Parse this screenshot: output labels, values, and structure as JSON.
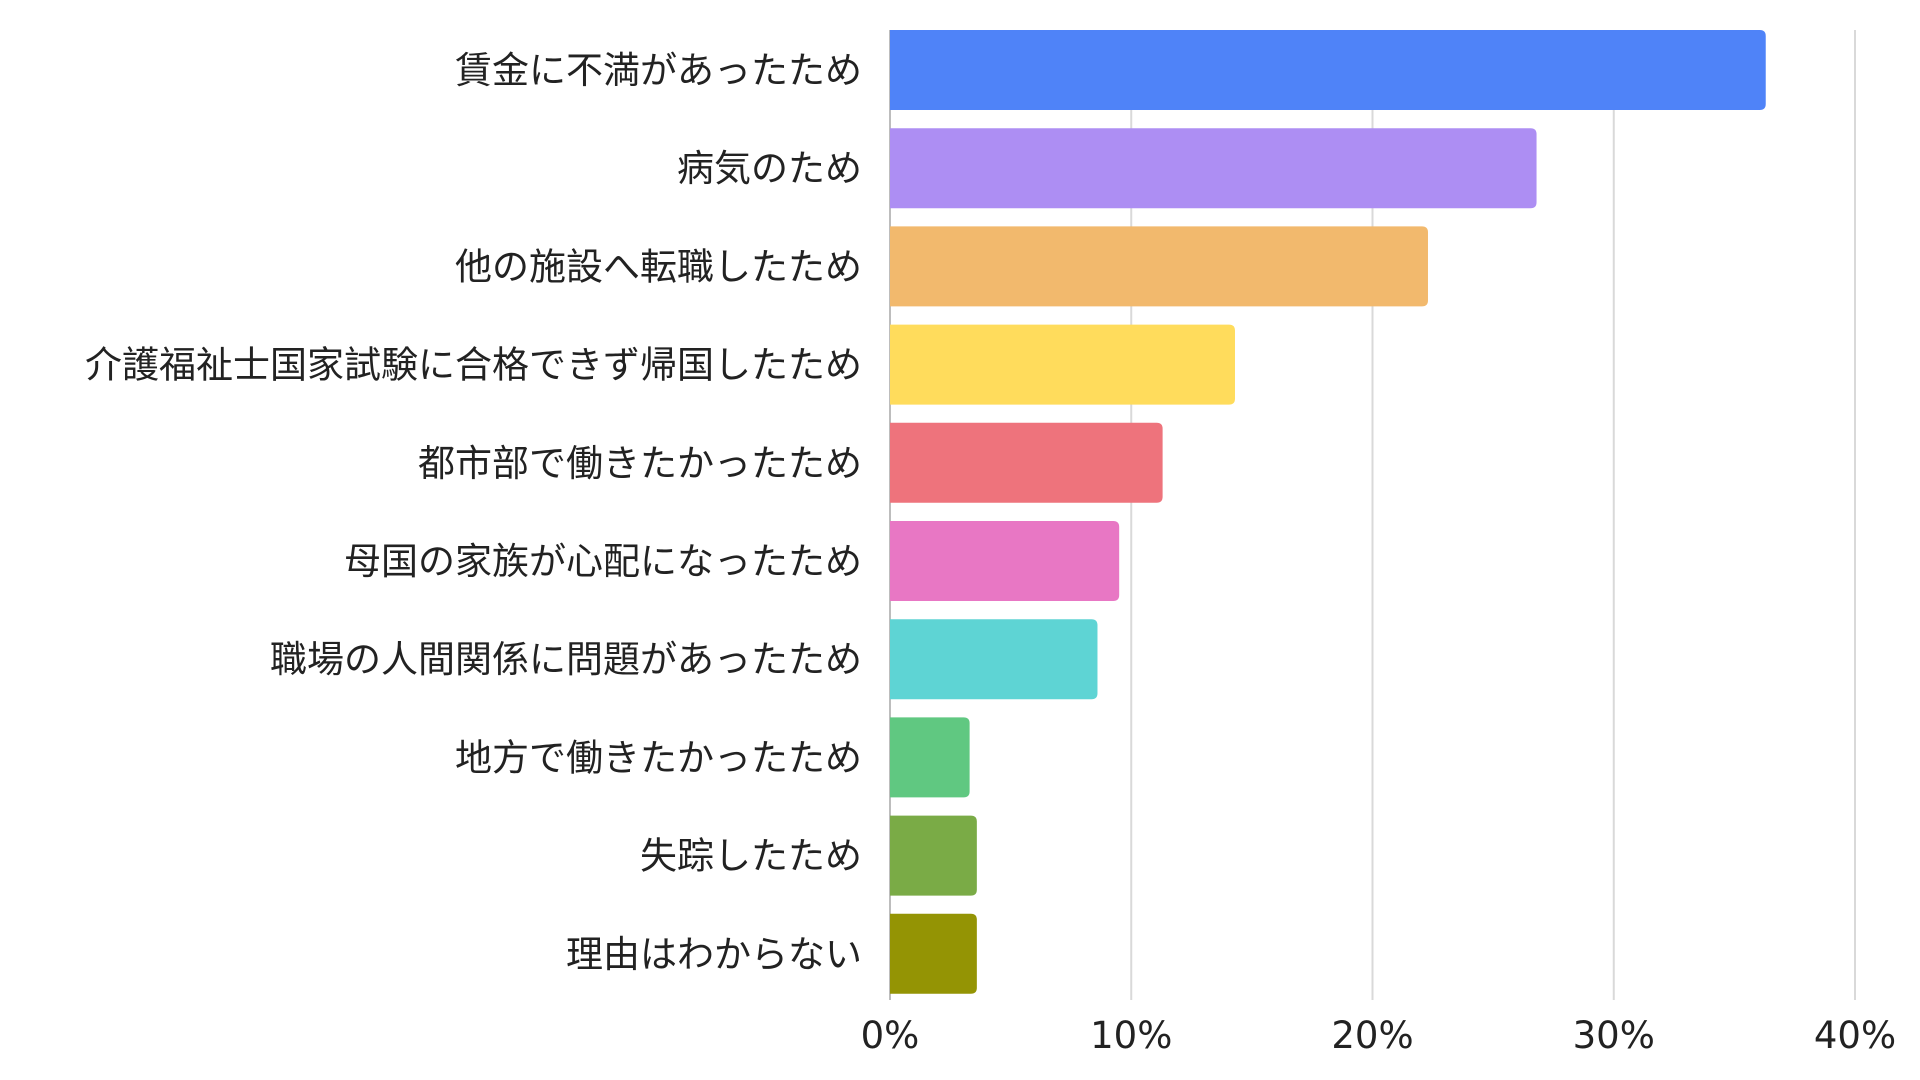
{
  "chart_data": {
    "type": "bar",
    "orientation": "horizontal",
    "categories": [
      "賃金に不満があったため",
      "病気のため",
      "他の施設へ転職したため",
      "介護福祉士国家試験に合格できず帰国したため",
      "都市部で働きたかったため",
      "母国の家族が心配になったため",
      "職場の人間関係に問題があったため",
      "地方で働きたかったため",
      "失踪したため",
      "理由はわからない"
    ],
    "values": [
      36.3,
      26.8,
      22.3,
      14.3,
      11.3,
      9.5,
      8.6,
      3.3,
      3.6,
      3.6
    ],
    "colors": [
      "#4f83f8",
      "#ad8ef3",
      "#f2b96d",
      "#ffdc5c",
      "#ee737c",
      "#e877c4",
      "#5ed4d4",
      "#60c881",
      "#7aab46",
      "#949404"
    ],
    "xlim": [
      0,
      40
    ],
    "xticks": [
      0,
      10,
      20,
      30,
      40
    ],
    "xtick_labels": [
      "0%",
      "10%",
      "20%",
      "30%",
      "40%"
    ],
    "grid": true,
    "title": "",
    "xlabel": "",
    "ylabel": ""
  }
}
